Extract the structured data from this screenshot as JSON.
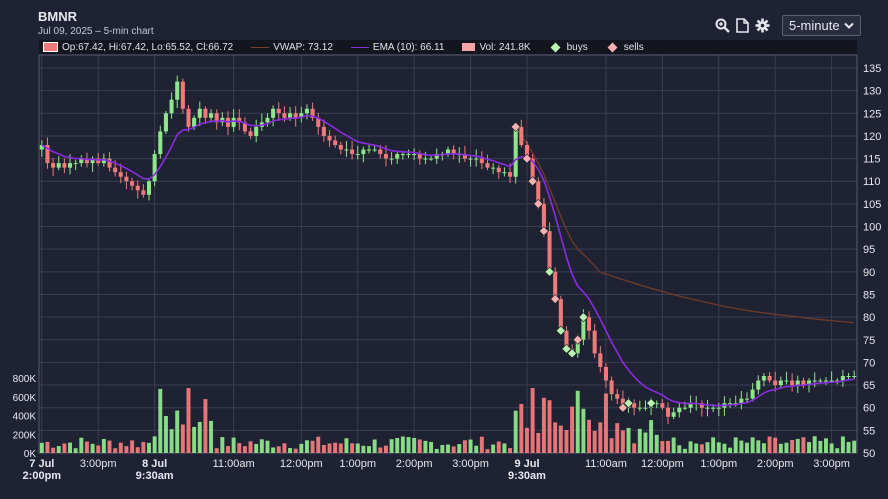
{
  "header": {
    "ticker": "BMNR",
    "subtitle": "Jul 09, 2025 – 5-min chart",
    "interval_selected": "5-minute"
  },
  "toolbar": {
    "icons": [
      "zoom-icon",
      "document-icon",
      "gear-icon"
    ]
  },
  "legend": {
    "ohlc_label": "Op:67.42, Hi:67.42, Lo:65.52, Cl:66.72",
    "vwap_label": "VWAP: 73.12",
    "ema_label": "EMA (10): 66.11",
    "vol_label": "Vol: 241.8K",
    "buys_label": "buys",
    "sells_label": "sells"
  },
  "colors": {
    "background": "#1f2233",
    "grid": "#3a3e52",
    "up": "#8ee68a",
    "down": "#f07a7a",
    "ema": "#8a2be2",
    "vwap": "#6a3a2a",
    "buy_marker": "#b8f5b0",
    "sell_marker": "#f5b0b0"
  },
  "chart_data": {
    "type": "candlestick",
    "title": "BMNR",
    "y_price_ticks": [
      135,
      130,
      125,
      120,
      115,
      110,
      105,
      100,
      95,
      90,
      85,
      80,
      75,
      70,
      65,
      60,
      55,
      50
    ],
    "y_price_range": [
      50,
      137
    ],
    "y_volume_ticks": [
      "800K",
      "600K",
      "400K",
      "200K",
      "0K"
    ],
    "y_volume_range": [
      0,
      800000
    ],
    "x_tick_labels": [
      {
        "label": "7 Jul",
        "sub": "2:00pm",
        "bold": true,
        "slot": 0
      },
      {
        "label": "3:00pm",
        "slot": 10
      },
      {
        "label": "8 Jul",
        "sub": "9:30am",
        "bold": true,
        "slot": 20
      },
      {
        "label": "11:00am",
        "slot": 34
      },
      {
        "label": "12:00pm",
        "slot": 46
      },
      {
        "label": "1:00pm",
        "slot": 56
      },
      {
        "label": "2:00pm",
        "slot": 66
      },
      {
        "label": "3:00pm",
        "slot": 76
      },
      {
        "label": "9 Jul",
        "sub": "9:30am",
        "bold": true,
        "slot": 86
      },
      {
        "label": "11:00am",
        "slot": 100
      },
      {
        "label": "12:00pm",
        "slot": 110
      },
      {
        "label": "1:00pm",
        "slot": 120
      },
      {
        "label": "2:00pm",
        "slot": 130
      },
      {
        "label": "3:00pm",
        "slot": 140
      }
    ],
    "close_series": [
      118,
      114,
      113,
      114,
      113,
      114,
      114,
      115,
      114,
      115,
      114,
      115,
      113,
      112,
      111,
      110,
      109,
      108,
      107,
      110,
      116,
      121,
      125,
      128,
      132,
      126,
      122,
      124,
      126,
      124,
      125,
      123,
      124,
      122,
      124,
      123,
      121,
      120,
      122,
      123,
      124,
      126,
      125,
      124,
      125,
      124,
      125,
      126,
      124,
      122,
      120,
      119,
      118,
      117,
      117,
      116,
      116,
      117,
      117,
      117,
      116,
      115,
      115,
      116,
      116,
      116,
      116,
      115,
      115,
      115,
      116,
      116,
      117,
      116,
      116,
      115,
      115,
      115,
      114,
      113,
      113,
      112,
      112,
      111,
      122,
      118,
      115,
      110,
      105,
      99,
      90,
      84,
      77,
      73,
      72,
      75,
      80,
      77,
      72,
      69,
      66,
      63,
      62,
      60,
      61,
      60,
      60,
      60,
      61,
      61,
      60,
      58,
      59,
      60,
      60,
      61,
      61,
      60,
      60,
      60,
      60,
      61,
      61,
      61,
      62,
      62,
      64,
      66,
      67,
      66,
      65,
      66,
      66,
      65,
      66,
      65,
      66,
      66,
      66,
      66,
      66,
      66,
      67,
      67,
      67
    ]
  }
}
